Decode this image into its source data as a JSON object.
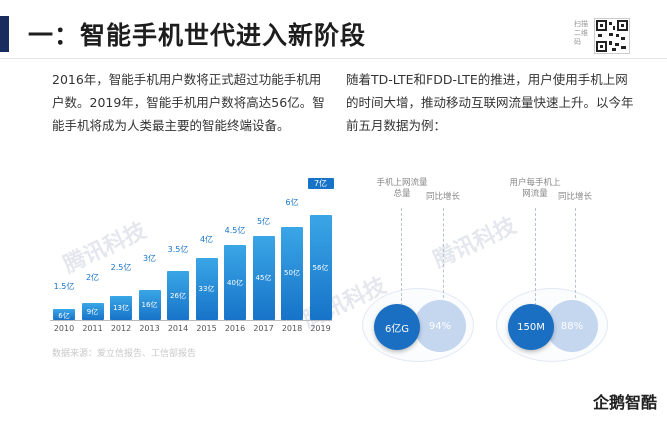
{
  "header": {
    "title": "一：智能手机世代进入新阶段",
    "qr_label": "扫描二维码"
  },
  "paragraphs": {
    "left": "2016年，智能手机用户数将正式超过功能手机用户数。2019年，智能手机用户数将高达56亿。智能手机将成为人类最主要的智能终端设备。",
    "right": "随着TD-LTE和FDD-LTE的推进，用户使用手机上网的时间大增，推动移动互联网流量快速上升。以今年前五月数据为例："
  },
  "chart_data": {
    "type": "bar",
    "categories": [
      "2010",
      "2011",
      "2012",
      "2013",
      "2014",
      "2015",
      "2016",
      "2017",
      "2018",
      "2019"
    ],
    "series": [
      {
        "name": "",
        "values": [
          1.5,
          2.0,
          2.5,
          3.0,
          3.5,
          4.0,
          4.5,
          5.0,
          6.0,
          7.0
        ],
        "labels": [
          "1.5亿",
          "2亿",
          "2.5亿",
          "3亿",
          "3.5亿",
          "4亿",
          "4.5亿",
          "5亿",
          "6亿",
          "7亿"
        ]
      },
      {
        "name": "",
        "values": [
          0.6,
          0.9,
          1.3,
          1.6,
          2.6,
          3.3,
          4.0,
          4.5,
          5.0,
          5.6
        ],
        "labels": [
          "6亿",
          "9亿",
          "13亿",
          "16亿",
          "26亿",
          "33亿",
          "40亿",
          "45亿",
          "50亿",
          "56亿"
        ]
      }
    ],
    "title": "",
    "xlabel": "",
    "ylabel": "",
    "ylim": [
      0,
      7.5
    ]
  },
  "source": "数据来源：爱立信报告、工信部报告",
  "stats": [
    {
      "label_a": "手机上网流量总量",
      "label_b": "同比增长",
      "value_a": "6亿G",
      "value_b": "94%"
    },
    {
      "label_a": "用户每手机上网流量",
      "label_b": "同比增长",
      "value_a": "150M",
      "value_b": "88%"
    }
  ],
  "watermark": "腾讯科技",
  "logo": "企鹅智酷"
}
